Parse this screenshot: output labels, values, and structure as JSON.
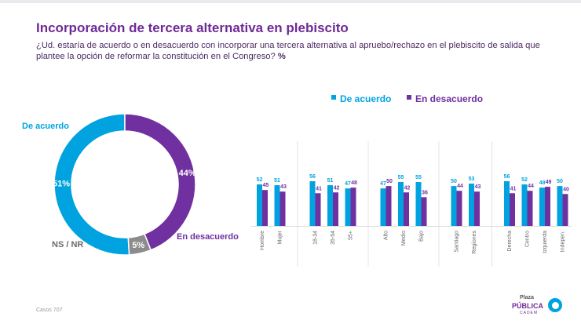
{
  "title": "Incorporación de tercera alternativa en plebiscito",
  "question": "¿Ud. estaría de acuerdo o en desacuerdo con incorporar una tercera alternativa al apruebo/rechazo en el plebiscito de salida que plantee la opción de reformar la constitución en el Congreso?",
  "question_unit": "%",
  "footer": {
    "label": "Casos",
    "value": "707"
  },
  "logo": {
    "line1": "Plaza",
    "line2": "PÚBLICA",
    "line3": "CADEM"
  },
  "colors": {
    "acuerdo": "#00a3e0",
    "desacuerdo": "#7030a0",
    "ns": "#8c8c8c"
  },
  "chart_data": [
    {
      "type": "pie",
      "variant": "donut",
      "slices": [
        {
          "label": "De acuerdo",
          "value": 51,
          "value_label": "51%",
          "color": "#00a3e0"
        },
        {
          "label": "En desacuerdo",
          "value": 44,
          "value_label": "44%",
          "color": "#7030a0"
        },
        {
          "label": "NS / NR",
          "value": 5,
          "value_label": "5%",
          "color": "#8c8c8c"
        }
      ]
    },
    {
      "type": "bar",
      "legend": [
        "De acuerdo",
        "En desacuerdo"
      ],
      "ylim": [
        0,
        60
      ],
      "categories": [
        "Hombre",
        "Mujer",
        "18-34",
        "35-54",
        "55+",
        "Alto",
        "Medio",
        "Bajo",
        "Santiago",
        "Regiones",
        "Derecha",
        "Centro",
        "Izquierda",
        "Indepen."
      ],
      "groups": [
        2,
        3,
        3,
        2,
        4
      ],
      "series": [
        {
          "name": "De acuerdo",
          "values": [
            52,
            51,
            56,
            51,
            47,
            47,
            55,
            55,
            50,
            53,
            56,
            52,
            48,
            50
          ]
        },
        {
          "name": "En desacuerdo",
          "values": [
            45,
            43,
            41,
            42,
            48,
            50,
            42,
            36,
            44,
            43,
            41,
            44,
            49,
            40
          ]
        }
      ]
    }
  ]
}
